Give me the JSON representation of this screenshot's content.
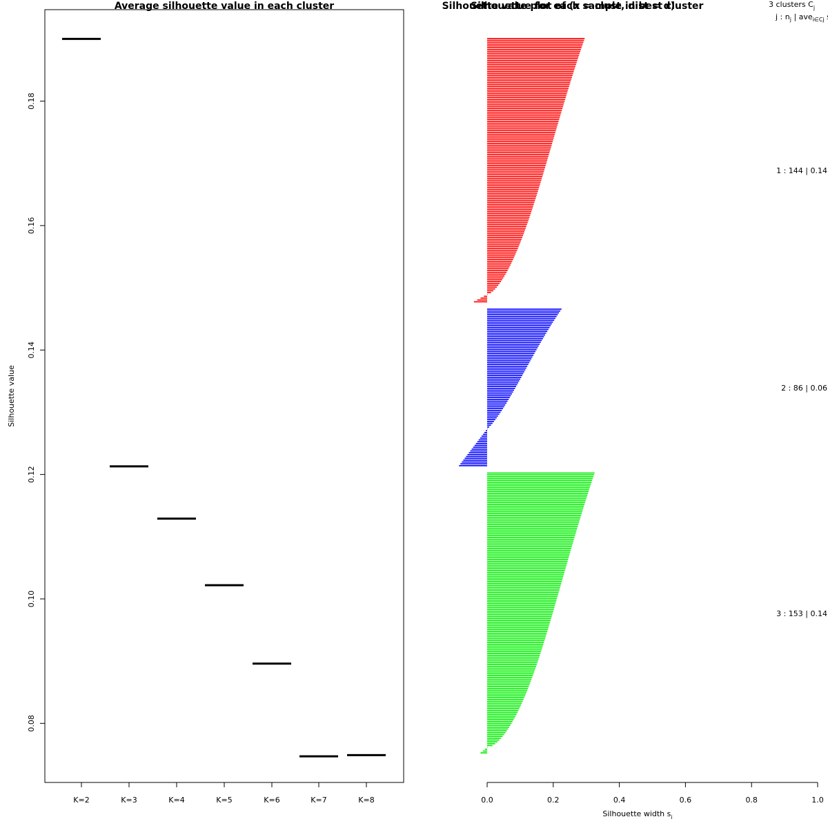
{
  "chart_data": [
    {
      "type": "scatter",
      "marker": "horizontal-segment",
      "title": "Average silhouette value in each cluster",
      "xlabel": "",
      "ylabel": "Silhouette value",
      "categories": [
        "K=2",
        "K=3",
        "K=4",
        "K=5",
        "K=6",
        "K=7",
        "K=8"
      ],
      "values": [
        0.19,
        0.1213,
        0.1129,
        0.1022,
        0.0896,
        0.0747,
        0.0749
      ],
      "yticks": [
        "0.08",
        "0.10",
        "0.12",
        "0.14",
        "0.16",
        "0.18"
      ],
      "ytick_values": [
        0.08,
        0.1,
        0.12,
        0.14,
        0.16,
        0.18
      ],
      "ylim": [
        0.0705,
        0.1947
      ],
      "grid": false
    },
    {
      "type": "bar",
      "orientation": "horizontal",
      "title_overlap": "Silhouette plot of (x = clust, dist = d)",
      "title": "Silhouette value for each sample in best cluster",
      "xlabel": "Silhouette width s",
      "xlabel_subscript": "i",
      "xticks": [
        "0.0",
        "0.2",
        "0.4",
        "0.6",
        "0.8",
        "1.0"
      ],
      "xtick_values": [
        0,
        0.2,
        0.4,
        0.6,
        0.8,
        1.0
      ],
      "xlim": [
        0,
        1
      ],
      "header_line1": "3  clusters  C",
      "header_line1_sub": "j",
      "header_line2_prefix": "j :  n",
      "header_line2_sub1": "j",
      "header_line2_mid": " | ave",
      "header_line2_sub2": "i∈Cj",
      "header_line2_suffix": "  s",
      "header_line2_sub3": "i",
      "clusters": [
        {
          "id": 1,
          "n": 144,
          "label": "1 :  144  |  0.14",
          "color": "#ff0000",
          "max": 0.295,
          "min": -0.04,
          "neg_count": 4,
          "shape": 0.65
        },
        {
          "id": 2,
          "n": 86,
          "label": "2 :  86  |  0.06",
          "color": "#0000ff",
          "max": 0.225,
          "min": -0.085,
          "neg_count": 20,
          "shape": 0.85
        },
        {
          "id": 3,
          "n": 153,
          "label": "3 :  153  |  0.14",
          "color": "#00ee00",
          "max": 0.325,
          "min": -0.02,
          "neg_count": 3,
          "shape": 0.6
        }
      ]
    }
  ]
}
